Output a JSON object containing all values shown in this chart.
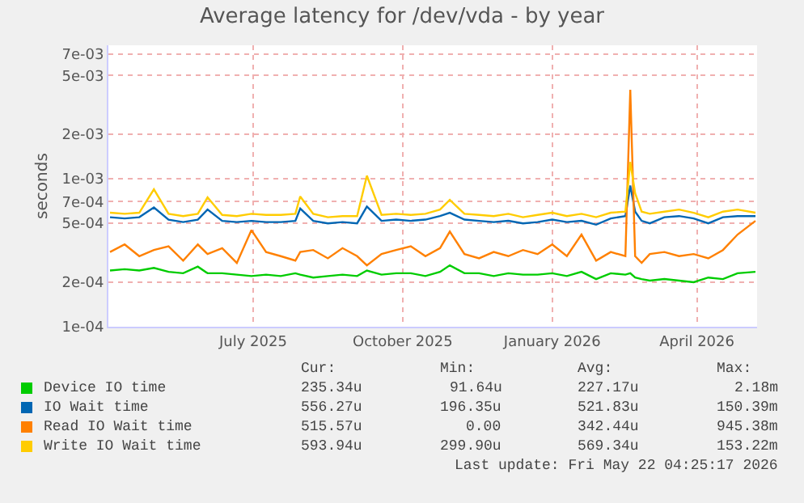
{
  "chart_data": {
    "type": "line",
    "title": "Average latency for /dev/vda - by year",
    "ylabel": "seconds",
    "x": [
      "2025-04-19",
      "2025-04-28",
      "2025-05-07",
      "2025-05-16",
      "2025-05-25",
      "2025-06-03",
      "2025-06-12",
      "2025-06-18",
      "2025-06-27",
      "2025-07-06",
      "2025-07-15",
      "2025-07-24",
      "2025-08-02",
      "2025-08-11",
      "2025-08-14",
      "2025-08-22",
      "2025-08-31",
      "2025-09-09",
      "2025-09-18",
      "2025-09-24",
      "2025-10-03",
      "2025-10-12",
      "2025-10-21",
      "2025-10-30",
      "2025-11-08",
      "2025-11-14",
      "2025-11-23",
      "2025-12-02",
      "2025-12-11",
      "2025-12-20",
      "2025-12-29",
      "2026-01-07",
      "2026-01-16",
      "2026-01-25",
      "2026-02-03",
      "2026-02-12",
      "2026-02-21",
      "2026-03-02",
      "2026-03-05",
      "2026-03-08",
      "2026-03-12",
      "2026-03-17",
      "2026-03-26",
      "2026-04-04",
      "2026-04-13",
      "2026-04-22",
      "2026-05-01",
      "2026-05-10",
      "2026-05-21"
    ],
    "series": [
      {
        "name": "Device IO time",
        "color": "#00cc00",
        "values": [
          0.00024,
          0.000245,
          0.00024,
          0.00025,
          0.000235,
          0.00023,
          0.000255,
          0.00023,
          0.00023,
          0.000225,
          0.00022,
          0.000225,
          0.00022,
          0.00023,
          0.000225,
          0.000215,
          0.00022,
          0.000225,
          0.00022,
          0.00024,
          0.000225,
          0.00023,
          0.00023,
          0.00022,
          0.000235,
          0.00026,
          0.00023,
          0.00023,
          0.00022,
          0.00023,
          0.000225,
          0.000225,
          0.00023,
          0.00022,
          0.000235,
          0.00021,
          0.00023,
          0.000225,
          0.00023,
          0.000215,
          0.00021,
          0.000205,
          0.00021,
          0.000205,
          0.0002,
          0.000215,
          0.00021,
          0.00023,
          0.000235
        ]
      },
      {
        "name": "IO Wait time",
        "color": "#0066b3",
        "values": [
          0.00055,
          0.00054,
          0.00055,
          0.00064,
          0.00053,
          0.00051,
          0.00053,
          0.00062,
          0.00052,
          0.00051,
          0.00052,
          0.00051,
          0.00051,
          0.00052,
          0.00063,
          0.00052,
          0.0005,
          0.00051,
          0.0005,
          0.00065,
          0.00052,
          0.00053,
          0.00052,
          0.00053,
          0.00056,
          0.00059,
          0.00053,
          0.00052,
          0.00051,
          0.00052,
          0.0005,
          0.00051,
          0.00053,
          0.00051,
          0.00052,
          0.00049,
          0.00054,
          0.00056,
          0.0009,
          0.0006,
          0.00052,
          0.0005,
          0.00055,
          0.00056,
          0.00054,
          0.0005,
          0.00055,
          0.00056,
          0.00056
        ]
      },
      {
        "name": "Read IO Wait time",
        "color": "#ff8000",
        "values": [
          0.00032,
          0.00036,
          0.0003,
          0.00033,
          0.00035,
          0.00028,
          0.00036,
          0.00031,
          0.00034,
          0.00027,
          0.00045,
          0.00032,
          0.0003,
          0.00028,
          0.00032,
          0.00033,
          0.00029,
          0.00034,
          0.0003,
          0.00026,
          0.00031,
          0.00033,
          0.00035,
          0.0003,
          0.00034,
          0.00044,
          0.00031,
          0.00029,
          0.00032,
          0.0003,
          0.00033,
          0.00031,
          0.00036,
          0.0003,
          0.00042,
          0.00028,
          0.00032,
          0.0003,
          0.004,
          0.0003,
          0.00027,
          0.00031,
          0.00032,
          0.0003,
          0.00031,
          0.00029,
          0.00033,
          0.00042,
          0.00052
        ]
      },
      {
        "name": "Write IO Wait time",
        "color": "#ffcc00",
        "values": [
          0.00059,
          0.00058,
          0.00059,
          0.00085,
          0.00058,
          0.00056,
          0.00058,
          0.00075,
          0.00057,
          0.00056,
          0.00058,
          0.00057,
          0.00057,
          0.00058,
          0.00076,
          0.00058,
          0.00055,
          0.00056,
          0.00056,
          0.00105,
          0.00057,
          0.00058,
          0.00057,
          0.00058,
          0.00062,
          0.00072,
          0.00058,
          0.00057,
          0.00056,
          0.00058,
          0.00055,
          0.00057,
          0.00059,
          0.00056,
          0.00058,
          0.00055,
          0.00059,
          0.0006,
          0.0013,
          0.0008,
          0.0006,
          0.00058,
          0.0006,
          0.00062,
          0.00059,
          0.00055,
          0.0006,
          0.00062,
          0.00059
        ]
      }
    ],
    "xlim": [
      "2025-04-18",
      "2026-05-22"
    ],
    "xticks": [
      {
        "value": "2025-07-16",
        "label": "July 2025"
      },
      {
        "value": "2025-10-16",
        "label": "October 2025"
      },
      {
        "value": "2026-01-16",
        "label": "January 2026"
      },
      {
        "value": "2026-04-15",
        "label": "April 2026"
      }
    ],
    "ylim": [
      0.0001,
      0.008
    ],
    "log": true,
    "yticks": [
      {
        "value": 0.0001,
        "label": "1e-04"
      },
      {
        "value": 0.0002,
        "label": "2e-04"
      },
      {
        "value": 0.0005,
        "label": "5e-04"
      },
      {
        "value": 0.0007,
        "label": "7e-04"
      },
      {
        "value": 0.001,
        "label": "1e-03"
      },
      {
        "value": 0.002,
        "label": "2e-03"
      },
      {
        "value": 0.005,
        "label": "5e-03"
      },
      {
        "value": 0.007,
        "label": "7e-03"
      }
    ],
    "grid": true,
    "legend": "bottom",
    "marker": "none",
    "line_style": "solid",
    "annotations": [
      "Cur:",
      "Min:",
      "Avg:",
      "Max:",
      "235.34u",
      "91.64u",
      "227.17u",
      "2.18m",
      "556.27u",
      "196.35u",
      "521.83u",
      "150.39m",
      "515.57u",
      "0.00",
      "342.44u",
      "945.38m",
      "593.94u",
      "299.90u",
      "569.34u",
      "153.22m",
      "Last update: Fri May 22 04:25:17 2026"
    ]
  }
}
